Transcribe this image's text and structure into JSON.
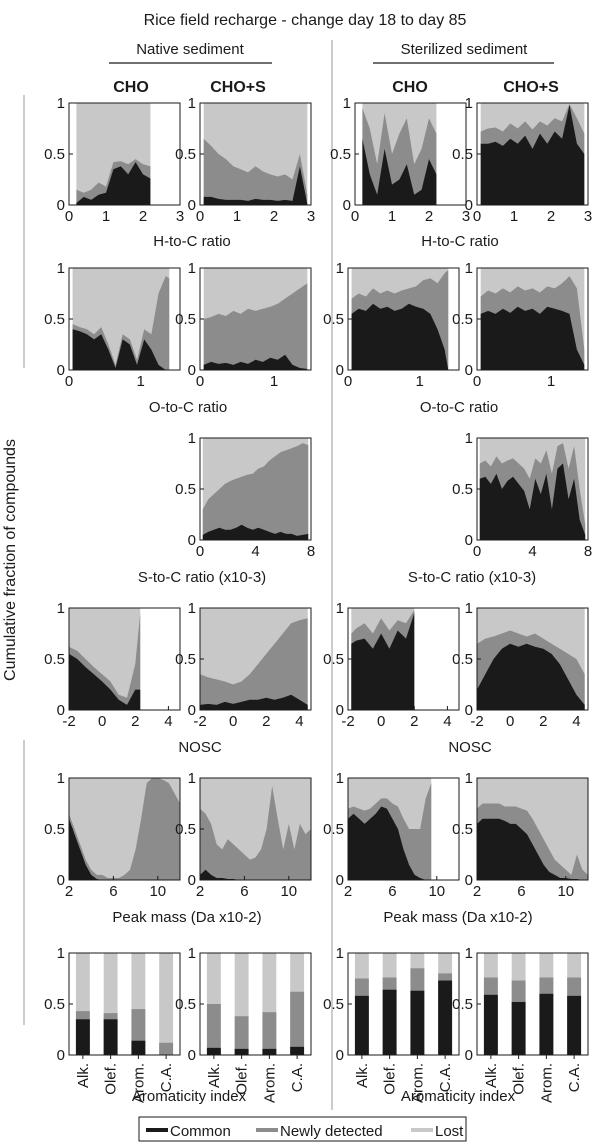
{
  "title": "Rice field recharge - change day 18 to day 85",
  "column_groups": [
    "Native sediment",
    "Sterilized sediment"
  ],
  "column_headers": [
    "CHO",
    "CHO+S",
    "CHO",
    "CHO+S"
  ],
  "y_axis_label": "Cumulative fraction of compounds",
  "row_xlabels": [
    "H-to-C ratio",
    "O-to-C ratio",
    "S-to-C ratio (x10-3)",
    "NOSC",
    "Peak mass (Da x10-2)",
    "Aromaticity index"
  ],
  "legend": [
    {
      "label": "Common",
      "color": "#1a1a1a"
    },
    {
      "label": "Newly detected",
      "color": "#8c8c8c"
    },
    {
      "label": "Lost",
      "color": "#c8c8c8"
    }
  ],
  "chart_data": [
    {
      "type": "area",
      "panel": "H/C native CHO",
      "xlim": [
        0,
        3
      ],
      "ylim": [
        0,
        1
      ],
      "xticks": [
        0,
        1,
        2,
        3
      ],
      "yticks": [
        0,
        0.5,
        1
      ],
      "x": [
        0.2,
        0.4,
        0.6,
        0.8,
        1.0,
        1.2,
        1.4,
        1.6,
        1.8,
        2.0,
        2.2
      ],
      "common": [
        0.02,
        0.08,
        0.05,
        0.1,
        0.12,
        0.35,
        0.38,
        0.3,
        0.42,
        0.3,
        0.26
      ],
      "newly": [
        0.15,
        0.12,
        0.15,
        0.22,
        0.18,
        0.42,
        0.43,
        0.4,
        0.45,
        0.4,
        0.38
      ]
    },
    {
      "type": "area",
      "panel": "H/C native CHO+S",
      "xlim": [
        0,
        3
      ],
      "ylim": [
        0,
        1
      ],
      "xticks": [
        0,
        1,
        2,
        3
      ],
      "yticks": [
        0,
        0.5,
        1
      ],
      "x": [
        0.1,
        0.3,
        0.5,
        0.7,
        0.9,
        1.1,
        1.3,
        1.5,
        1.7,
        1.9,
        2.1,
        2.3,
        2.5,
        2.7,
        2.9
      ],
      "common": [
        0.08,
        0.08,
        0.06,
        0.05,
        0.05,
        0.05,
        0.04,
        0.06,
        0.05,
        0.05,
        0.04,
        0.05,
        0.04,
        0.38,
        0.01
      ],
      "newly": [
        0.65,
        0.58,
        0.5,
        0.45,
        0.38,
        0.35,
        0.32,
        0.38,
        0.33,
        0.3,
        0.28,
        0.3,
        0.25,
        0.5,
        0.1
      ]
    },
    {
      "type": "area",
      "panel": "H/C sterilized CHO",
      "xlim": [
        0,
        3
      ],
      "ylim": [
        0,
        1
      ],
      "xticks": [
        0,
        1,
        2,
        3
      ],
      "yticks": [
        0,
        0.5,
        1
      ],
      "x": [
        0.2,
        0.4,
        0.6,
        0.8,
        1.0,
        1.2,
        1.4,
        1.6,
        1.8,
        2.0,
        2.2
      ],
      "common": [
        0.65,
        0.3,
        0.1,
        0.55,
        0.2,
        0.25,
        0.4,
        0.1,
        0.15,
        0.45,
        0.3
      ],
      "newly": [
        0.95,
        0.75,
        0.4,
        0.9,
        0.5,
        0.7,
        0.85,
        0.4,
        0.55,
        0.85,
        0.7
      ]
    },
    {
      "type": "area",
      "panel": "H/C sterilized CHO+S",
      "xlim": [
        0,
        3
      ],
      "ylim": [
        0,
        1
      ],
      "xticks": [
        0,
        1,
        2,
        3
      ],
      "yticks": [
        0,
        0.5,
        1
      ],
      "x": [
        0.1,
        0.3,
        0.5,
        0.7,
        0.9,
        1.1,
        1.3,
        1.5,
        1.7,
        1.9,
        2.1,
        2.3,
        2.5,
        2.7,
        2.9
      ],
      "common": [
        0.6,
        0.6,
        0.62,
        0.58,
        0.65,
        0.6,
        0.68,
        0.55,
        0.7,
        0.6,
        0.72,
        0.65,
        0.98,
        0.6,
        0.5
      ],
      "newly": [
        0.72,
        0.75,
        0.76,
        0.72,
        0.8,
        0.75,
        0.82,
        0.74,
        0.82,
        0.78,
        0.85,
        0.82,
        0.99,
        0.85,
        0.7
      ]
    },
    {
      "type": "area",
      "panel": "O/C native CHO",
      "xlim": [
        0,
        1.55
      ],
      "ylim": [
        0,
        1
      ],
      "xticks": [
        0,
        1
      ],
      "yticks": [
        0,
        0.5,
        1
      ],
      "x": [
        0.05,
        0.15,
        0.25,
        0.35,
        0.45,
        0.55,
        0.65,
        0.75,
        0.85,
        0.95,
        1.05,
        1.15,
        1.25,
        1.35,
        1.4
      ],
      "common": [
        0.4,
        0.38,
        0.35,
        0.3,
        0.35,
        0.2,
        0.02,
        0.3,
        0.25,
        0.05,
        0.3,
        0.2,
        0.05,
        0.0,
        0.0
      ],
      "newly": [
        0.45,
        0.42,
        0.4,
        0.35,
        0.42,
        0.25,
        0.05,
        0.35,
        0.3,
        0.1,
        0.4,
        0.35,
        0.75,
        0.92,
        0.9
      ]
    },
    {
      "type": "area",
      "panel": "O/C native CHO+S",
      "xlim": [
        0,
        1.5
      ],
      "ylim": [
        0,
        1
      ],
      "xticks": [
        0,
        1
      ],
      "yticks": [
        0,
        0.5,
        1
      ],
      "x": [
        0.05,
        0.15,
        0.25,
        0.35,
        0.45,
        0.55,
        0.65,
        0.75,
        0.85,
        0.95,
        1.05,
        1.15,
        1.25,
        1.35,
        1.45
      ],
      "common": [
        0.05,
        0.08,
        0.06,
        0.07,
        0.05,
        0.08,
        0.06,
        0.1,
        0.08,
        0.12,
        0.1,
        0.15,
        0.05,
        0.02,
        0.01
      ],
      "newly": [
        0.5,
        0.52,
        0.55,
        0.53,
        0.58,
        0.55,
        0.6,
        0.58,
        0.6,
        0.62,
        0.65,
        0.7,
        0.75,
        0.8,
        0.85
      ]
    },
    {
      "type": "area",
      "panel": "O/C sterilized CHO",
      "xlim": [
        0,
        1.55
      ],
      "ylim": [
        0,
        1
      ],
      "xticks": [
        0,
        1
      ],
      "yticks": [
        0,
        0.5,
        1
      ],
      "x": [
        0.05,
        0.15,
        0.25,
        0.35,
        0.45,
        0.55,
        0.65,
        0.75,
        0.85,
        0.95,
        1.05,
        1.15,
        1.25,
        1.35,
        1.4
      ],
      "common": [
        0.55,
        0.6,
        0.58,
        0.65,
        0.6,
        0.62,
        0.58,
        0.6,
        0.65,
        0.62,
        0.6,
        0.55,
        0.4,
        0.2,
        0.0
      ],
      "newly": [
        0.7,
        0.75,
        0.72,
        0.8,
        0.75,
        0.78,
        0.75,
        0.78,
        0.8,
        0.82,
        0.88,
        0.9,
        0.85,
        0.95,
        0.98
      ]
    },
    {
      "type": "area",
      "panel": "O/C sterilized CHO+S",
      "xlim": [
        0,
        1.5
      ],
      "ylim": [
        0,
        1
      ],
      "xticks": [
        0,
        1
      ],
      "yticks": [
        0,
        0.5,
        1
      ],
      "x": [
        0.05,
        0.15,
        0.25,
        0.35,
        0.45,
        0.55,
        0.65,
        0.75,
        0.85,
        0.95,
        1.05,
        1.15,
        1.25,
        1.35,
        1.45
      ],
      "common": [
        0.55,
        0.58,
        0.55,
        0.6,
        0.56,
        0.62,
        0.58,
        0.6,
        0.55,
        0.62,
        0.6,
        0.58,
        0.55,
        0.2,
        0.05
      ],
      "newly": [
        0.72,
        0.78,
        0.75,
        0.8,
        0.76,
        0.82,
        0.78,
        0.8,
        0.76,
        0.82,
        0.8,
        0.85,
        0.92,
        0.8,
        0.2
      ]
    },
    {
      "type": "area",
      "panel": "S/C native CHO+S",
      "xlim": [
        0,
        8
      ],
      "ylim": [
        0,
        1
      ],
      "xticks": [
        0,
        4,
        8
      ],
      "yticks": [
        0,
        0.5,
        1
      ],
      "x": [
        0.2,
        0.6,
        1.0,
        1.4,
        1.8,
        2.2,
        2.6,
        3.0,
        3.4,
        3.8,
        4.2,
        4.6,
        5.0,
        5.4,
        5.8,
        6.2,
        6.6,
        7.0,
        7.4,
        7.8
      ],
      "common": [
        0.05,
        0.08,
        0.1,
        0.12,
        0.1,
        0.1,
        0.12,
        0.15,
        0.12,
        0.1,
        0.12,
        0.1,
        0.08,
        0.06,
        0.08,
        0.06,
        0.06,
        0.04,
        0.05,
        0.06
      ],
      "newly": [
        0.3,
        0.4,
        0.45,
        0.5,
        0.55,
        0.58,
        0.6,
        0.62,
        0.64,
        0.65,
        0.7,
        0.72,
        0.78,
        0.82,
        0.86,
        0.88,
        0.9,
        0.92,
        0.95,
        0.93
      ]
    },
    {
      "type": "area",
      "panel": "S/C sterilized CHO+S",
      "xlim": [
        0,
        8
      ],
      "ylim": [
        0,
        1
      ],
      "xticks": [
        0,
        4,
        8
      ],
      "yticks": [
        0,
        0.5,
        1
      ],
      "x": [
        0.2,
        0.6,
        1.0,
        1.4,
        1.8,
        2.2,
        2.6,
        3.0,
        3.4,
        3.8,
        4.2,
        4.6,
        5.0,
        5.4,
        5.8,
        6.2,
        6.6,
        7.0,
        7.4,
        7.8
      ],
      "common": [
        0.6,
        0.62,
        0.55,
        0.65,
        0.5,
        0.58,
        0.62,
        0.55,
        0.48,
        0.3,
        0.6,
        0.45,
        0.65,
        0.3,
        0.7,
        0.75,
        0.4,
        0.6,
        0.2,
        0.05
      ],
      "newly": [
        0.75,
        0.78,
        0.72,
        0.82,
        0.75,
        0.78,
        0.8,
        0.75,
        0.7,
        0.6,
        0.8,
        0.75,
        0.88,
        0.65,
        0.92,
        0.95,
        0.7,
        0.92,
        0.5,
        0.15
      ]
    },
    {
      "type": "area",
      "panel": "NOSC native CHO",
      "xlim": [
        -2,
        4.7
      ],
      "ylim": [
        0,
        1
      ],
      "xticks": [
        -2,
        0,
        2,
        4
      ],
      "yticks": [
        0,
        0.5,
        1
      ],
      "x": [
        -2,
        -1.5,
        -1,
        -0.5,
        0,
        0.5,
        1,
        1.5,
        2,
        2.3
      ],
      "common": [
        0.55,
        0.5,
        0.42,
        0.35,
        0.28,
        0.2,
        0.1,
        0.05,
        0.2,
        0.2
      ],
      "newly": [
        0.62,
        0.58,
        0.5,
        0.42,
        0.35,
        0.28,
        0.15,
        0.12,
        0.45,
        0.95
      ]
    },
    {
      "type": "area",
      "panel": "NOSC native CHO+S",
      "xlim": [
        -2,
        4.7
      ],
      "ylim": [
        0,
        1
      ],
      "xticks": [
        -2,
        0,
        2,
        4
      ],
      "yticks": [
        0,
        0.5,
        1
      ],
      "x": [
        -2,
        -1.5,
        -1,
        -0.5,
        0,
        0.5,
        1,
        1.5,
        2,
        2.5,
        3,
        3.5,
        4,
        4.5
      ],
      "common": [
        0.05,
        0.06,
        0.05,
        0.08,
        0.06,
        0.08,
        0.1,
        0.1,
        0.12,
        0.1,
        0.12,
        0.15,
        0.1,
        0.05
      ],
      "newly": [
        0.35,
        0.32,
        0.3,
        0.28,
        0.25,
        0.28,
        0.35,
        0.45,
        0.55,
        0.65,
        0.75,
        0.85,
        0.88,
        0.9
      ]
    },
    {
      "type": "area",
      "panel": "NOSC sterilized CHO",
      "xlim": [
        -2,
        4.7
      ],
      "ylim": [
        0,
        1
      ],
      "xticks": [
        -2,
        0,
        2,
        4
      ],
      "yticks": [
        0,
        0.5,
        1
      ],
      "x": [
        -1.8,
        -1.5,
        -1,
        -0.5,
        0,
        0.5,
        1,
        1.5,
        2
      ],
      "common": [
        0.65,
        0.68,
        0.7,
        0.6,
        0.75,
        0.6,
        0.78,
        0.7,
        0.95
      ],
      "newly": [
        0.75,
        0.8,
        0.85,
        0.75,
        0.9,
        0.78,
        0.88,
        0.85,
        0.98
      ]
    },
    {
      "type": "area",
      "panel": "NOSC sterilized CHO+S",
      "xlim": [
        -2,
        4.7
      ],
      "ylim": [
        0,
        1
      ],
      "xticks": [
        -2,
        0,
        2,
        4
      ],
      "yticks": [
        0,
        0.5,
        1
      ],
      "x": [
        -2,
        -1.5,
        -1,
        -0.5,
        0,
        0.5,
        1,
        1.5,
        2,
        2.5,
        3,
        3.5,
        4,
        4.5
      ],
      "common": [
        0.2,
        0.35,
        0.5,
        0.6,
        0.65,
        0.62,
        0.65,
        0.62,
        0.6,
        0.55,
        0.45,
        0.3,
        0.15,
        0.05
      ],
      "newly": [
        0.65,
        0.7,
        0.72,
        0.75,
        0.78,
        0.75,
        0.72,
        0.75,
        0.7,
        0.65,
        0.6,
        0.55,
        0.5,
        0.35
      ]
    },
    {
      "type": "area",
      "panel": "Peak mass native CHO",
      "xlim": [
        2,
        12
      ],
      "ylim": [
        0,
        1
      ],
      "xticks": [
        2,
        6,
        10
      ],
      "yticks": [
        0,
        0.5,
        1
      ],
      "x": [
        2,
        2.5,
        3,
        3.5,
        4,
        4.5,
        5,
        5.5,
        6,
        6.5,
        7,
        7.5,
        8,
        8.5,
        9,
        9.5,
        10,
        10.5,
        11,
        11.5,
        12
      ],
      "common": [
        0.6,
        0.45,
        0.3,
        0.15,
        0.05,
        0.01,
        0,
        0,
        0,
        0,
        0,
        0,
        0,
        0,
        0,
        0,
        0,
        0,
        0,
        0,
        0
      ],
      "newly": [
        0.65,
        0.5,
        0.35,
        0.2,
        0.1,
        0.05,
        0.05,
        0.02,
        0.02,
        0.02,
        0.05,
        0.1,
        0.3,
        0.6,
        0.95,
        1.0,
        1.0,
        0.98,
        0.95,
        0.85,
        0.75
      ]
    },
    {
      "type": "area",
      "panel": "Peak mass native CHO+S",
      "xlim": [
        2,
        12
      ],
      "ylim": [
        0,
        1
      ],
      "xticks": [
        2,
        6,
        10
      ],
      "yticks": [
        0,
        0.5,
        1
      ],
      "x": [
        2,
        2.5,
        3,
        3.5,
        4,
        4.5,
        5,
        5.5,
        6,
        6.5,
        7,
        7.5,
        8,
        8.5,
        9,
        9.5,
        10,
        10.5,
        11,
        11.5,
        12
      ],
      "common": [
        0.05,
        0.1,
        0.05,
        0.02,
        0.02,
        0.01,
        0.01,
        0,
        0,
        0,
        0,
        0,
        0,
        0,
        0,
        0,
        0,
        0,
        0,
        0,
        0
      ],
      "newly": [
        0.7,
        0.65,
        0.55,
        0.35,
        0.3,
        0.4,
        0.35,
        0.3,
        0.25,
        0.2,
        0.22,
        0.3,
        0.5,
        0.92,
        0.6,
        0.3,
        0.55,
        0.3,
        0.55,
        0.45,
        0.5
      ]
    },
    {
      "type": "area",
      "panel": "Peak mass sterilized CHO",
      "xlim": [
        2,
        12
      ],
      "ylim": [
        0,
        1
      ],
      "xticks": [
        2,
        6,
        10
      ],
      "yticks": [
        0,
        0.5,
        1
      ],
      "x": [
        2,
        2.5,
        3,
        3.5,
        4,
        4.5,
        5,
        5.5,
        6,
        6.5,
        7,
        7.5,
        8,
        8.5,
        9,
        9.5
      ],
      "common": [
        0.6,
        0.65,
        0.6,
        0.55,
        0.6,
        0.65,
        0.72,
        0.7,
        0.6,
        0.5,
        0.3,
        0.15,
        0.05,
        0.02,
        0,
        0
      ],
      "newly": [
        0.7,
        0.72,
        0.7,
        0.68,
        0.7,
        0.75,
        0.8,
        0.8,
        0.75,
        0.72,
        0.6,
        0.5,
        0.5,
        0.5,
        0.8,
        0.95
      ]
    },
    {
      "type": "area",
      "panel": "Peak mass sterilized CHO+S",
      "xlim": [
        2,
        12
      ],
      "ylim": [
        0,
        1
      ],
      "xticks": [
        2,
        6,
        10
      ],
      "yticks": [
        0,
        0.5,
        1
      ],
      "x": [
        2,
        2.5,
        3,
        3.5,
        4,
        4.5,
        5,
        5.5,
        6,
        6.5,
        7,
        7.5,
        8,
        8.5,
        9,
        9.5,
        10,
        10.5,
        11,
        11.5,
        12
      ],
      "common": [
        0.55,
        0.6,
        0.6,
        0.6,
        0.6,
        0.58,
        0.55,
        0.55,
        0.5,
        0.45,
        0.35,
        0.25,
        0.15,
        0.08,
        0.05,
        0.02,
        0.02,
        0.01,
        0.01,
        0,
        0
      ],
      "newly": [
        0.7,
        0.75,
        0.75,
        0.75,
        0.75,
        0.72,
        0.72,
        0.72,
        0.7,
        0.68,
        0.6,
        0.5,
        0.4,
        0.3,
        0.2,
        0.15,
        0.1,
        0.05,
        0.25,
        0.1,
        0.05
      ]
    },
    {
      "type": "bar",
      "panel": "AI native CHO",
      "categories": [
        "Alk.",
        "Olef.",
        "Arom.",
        "C.A."
      ],
      "ylim": [
        0,
        1
      ],
      "yticks": [
        0,
        0.5,
        1
      ],
      "common": [
        0.35,
        0.35,
        0.14,
        0.0
      ],
      "newly": [
        0.43,
        0.41,
        0.45,
        0.12
      ]
    },
    {
      "type": "bar",
      "panel": "AI native CHO+S",
      "categories": [
        "Alk.",
        "Olef.",
        "Arom.",
        "C.A."
      ],
      "ylim": [
        0,
        1
      ],
      "yticks": [
        0,
        0.5,
        1
      ],
      "common": [
        0.07,
        0.06,
        0.06,
        0.08
      ],
      "newly": [
        0.5,
        0.38,
        0.42,
        0.62
      ]
    },
    {
      "type": "bar",
      "panel": "AI sterilized CHO",
      "categories": [
        "Alk.",
        "Olef.",
        "Arom.",
        "C.A."
      ],
      "ylim": [
        0,
        1
      ],
      "yticks": [
        0,
        0.5,
        1
      ],
      "common": [
        0.58,
        0.64,
        0.63,
        0.73
      ],
      "newly": [
        0.75,
        0.76,
        0.85,
        0.8
      ]
    },
    {
      "type": "bar",
      "panel": "AI sterilized CHO+S",
      "categories": [
        "Alk.",
        "Olef.",
        "Arom.",
        "C.A."
      ],
      "ylim": [
        0,
        1
      ],
      "yticks": [
        0,
        0.5,
        1
      ],
      "common": [
        0.59,
        0.52,
        0.6,
        0.58
      ],
      "newly": [
        0.76,
        0.73,
        0.76,
        0.76
      ]
    }
  ]
}
